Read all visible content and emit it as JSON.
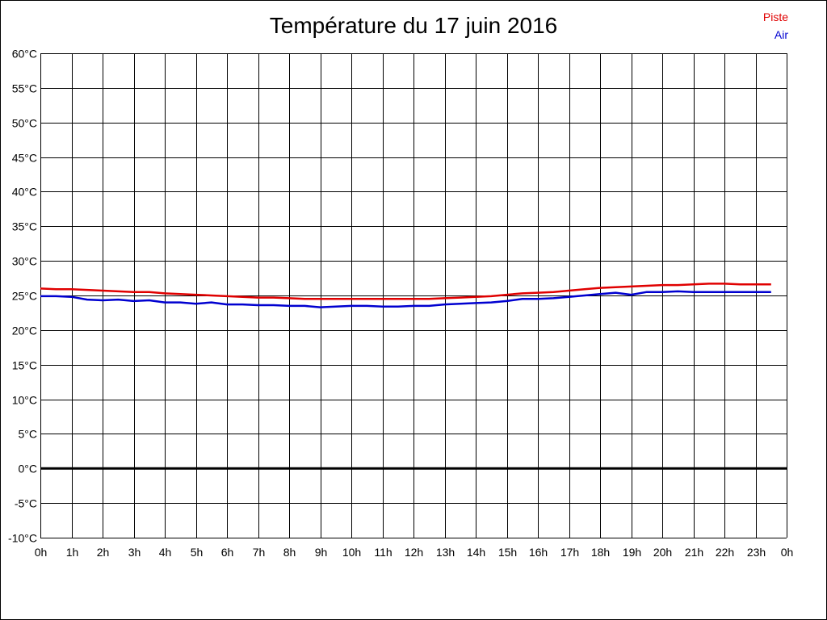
{
  "chart_data": {
    "type": "line",
    "title": "Température du 17 juin 2016",
    "xlabel": "",
    "ylabel": "",
    "ylim": [
      -10,
      60
    ],
    "xlim": [
      0,
      24
    ],
    "yticks": [
      60,
      55,
      50,
      45,
      40,
      35,
      30,
      25,
      20,
      15,
      10,
      5,
      0,
      -5,
      -10
    ],
    "ytick_labels": [
      "60°C",
      "55°C",
      "50°C",
      "45°C",
      "40°C",
      "35°C",
      "30°C",
      "25°C",
      "20°C",
      "15°C",
      "10°C",
      "5°C",
      "0°C",
      "-5°C",
      "-10°C"
    ],
    "xticks": [
      0,
      1,
      2,
      3,
      4,
      5,
      6,
      7,
      8,
      9,
      10,
      11,
      12,
      13,
      14,
      15,
      16,
      17,
      18,
      19,
      20,
      21,
      22,
      23,
      24
    ],
    "xtick_labels": [
      "0h",
      "1h",
      "2h",
      "3h",
      "4h",
      "5h",
      "6h",
      "7h",
      "8h",
      "9h",
      "10h",
      "11h",
      "12h",
      "13h",
      "14h",
      "15h",
      "16h",
      "17h",
      "18h",
      "19h",
      "20h",
      "21h",
      "22h",
      "23h",
      "0h"
    ],
    "grid": true,
    "legend_placement": "top-right",
    "zero_line": true,
    "series": [
      {
        "name": "Piste",
        "color": "#e00000",
        "x": [
          0,
          0.5,
          1,
          1.5,
          2,
          2.5,
          3,
          3.5,
          4,
          4.5,
          5,
          5.5,
          6,
          6.5,
          7,
          7.5,
          8,
          8.5,
          9,
          9.5,
          10,
          10.5,
          11,
          11.5,
          12,
          12.5,
          13,
          13.5,
          14,
          14.5,
          15,
          15.5,
          16,
          16.5,
          17,
          17.5,
          18,
          18.5,
          19,
          19.5,
          20,
          20.5,
          21,
          21.5,
          22,
          22.5,
          23,
          23.5
        ],
        "values": [
          26.0,
          25.9,
          25.9,
          25.8,
          25.7,
          25.6,
          25.5,
          25.5,
          25.3,
          25.2,
          25.1,
          25.0,
          24.9,
          24.8,
          24.7,
          24.7,
          24.6,
          24.5,
          24.5,
          24.5,
          24.5,
          24.5,
          24.5,
          24.5,
          24.5,
          24.5,
          24.6,
          24.7,
          24.8,
          24.9,
          25.1,
          25.3,
          25.4,
          25.5,
          25.7,
          25.9,
          26.1,
          26.2,
          26.3,
          26.4,
          26.5,
          26.5,
          26.6,
          26.7,
          26.7,
          26.6,
          26.6,
          26.6
        ]
      },
      {
        "name": "Air",
        "color": "#0000d0",
        "x": [
          0,
          0.5,
          1,
          1.5,
          2,
          2.5,
          3,
          3.5,
          4,
          4.5,
          5,
          5.5,
          6,
          6.5,
          7,
          7.5,
          8,
          8.5,
          9,
          9.5,
          10,
          10.5,
          11,
          11.5,
          12,
          12.5,
          13,
          13.5,
          14,
          14.5,
          15,
          15.5,
          16,
          16.5,
          17,
          17.5,
          18,
          18.5,
          19,
          19.5,
          20,
          20.5,
          21,
          21.5,
          22,
          22.5,
          23,
          23.5
        ],
        "values": [
          24.9,
          24.9,
          24.8,
          24.4,
          24.3,
          24.4,
          24.2,
          24.3,
          24.0,
          24.0,
          23.8,
          24.0,
          23.7,
          23.7,
          23.6,
          23.6,
          23.5,
          23.5,
          23.3,
          23.4,
          23.5,
          23.5,
          23.4,
          23.4,
          23.5,
          23.5,
          23.7,
          23.8,
          23.9,
          24.0,
          24.2,
          24.5,
          24.5,
          24.6,
          24.8,
          25.0,
          25.2,
          25.4,
          25.1,
          25.5,
          25.5,
          25.6,
          25.5,
          25.5,
          25.5,
          25.5,
          25.5,
          25.5
        ]
      }
    ]
  }
}
